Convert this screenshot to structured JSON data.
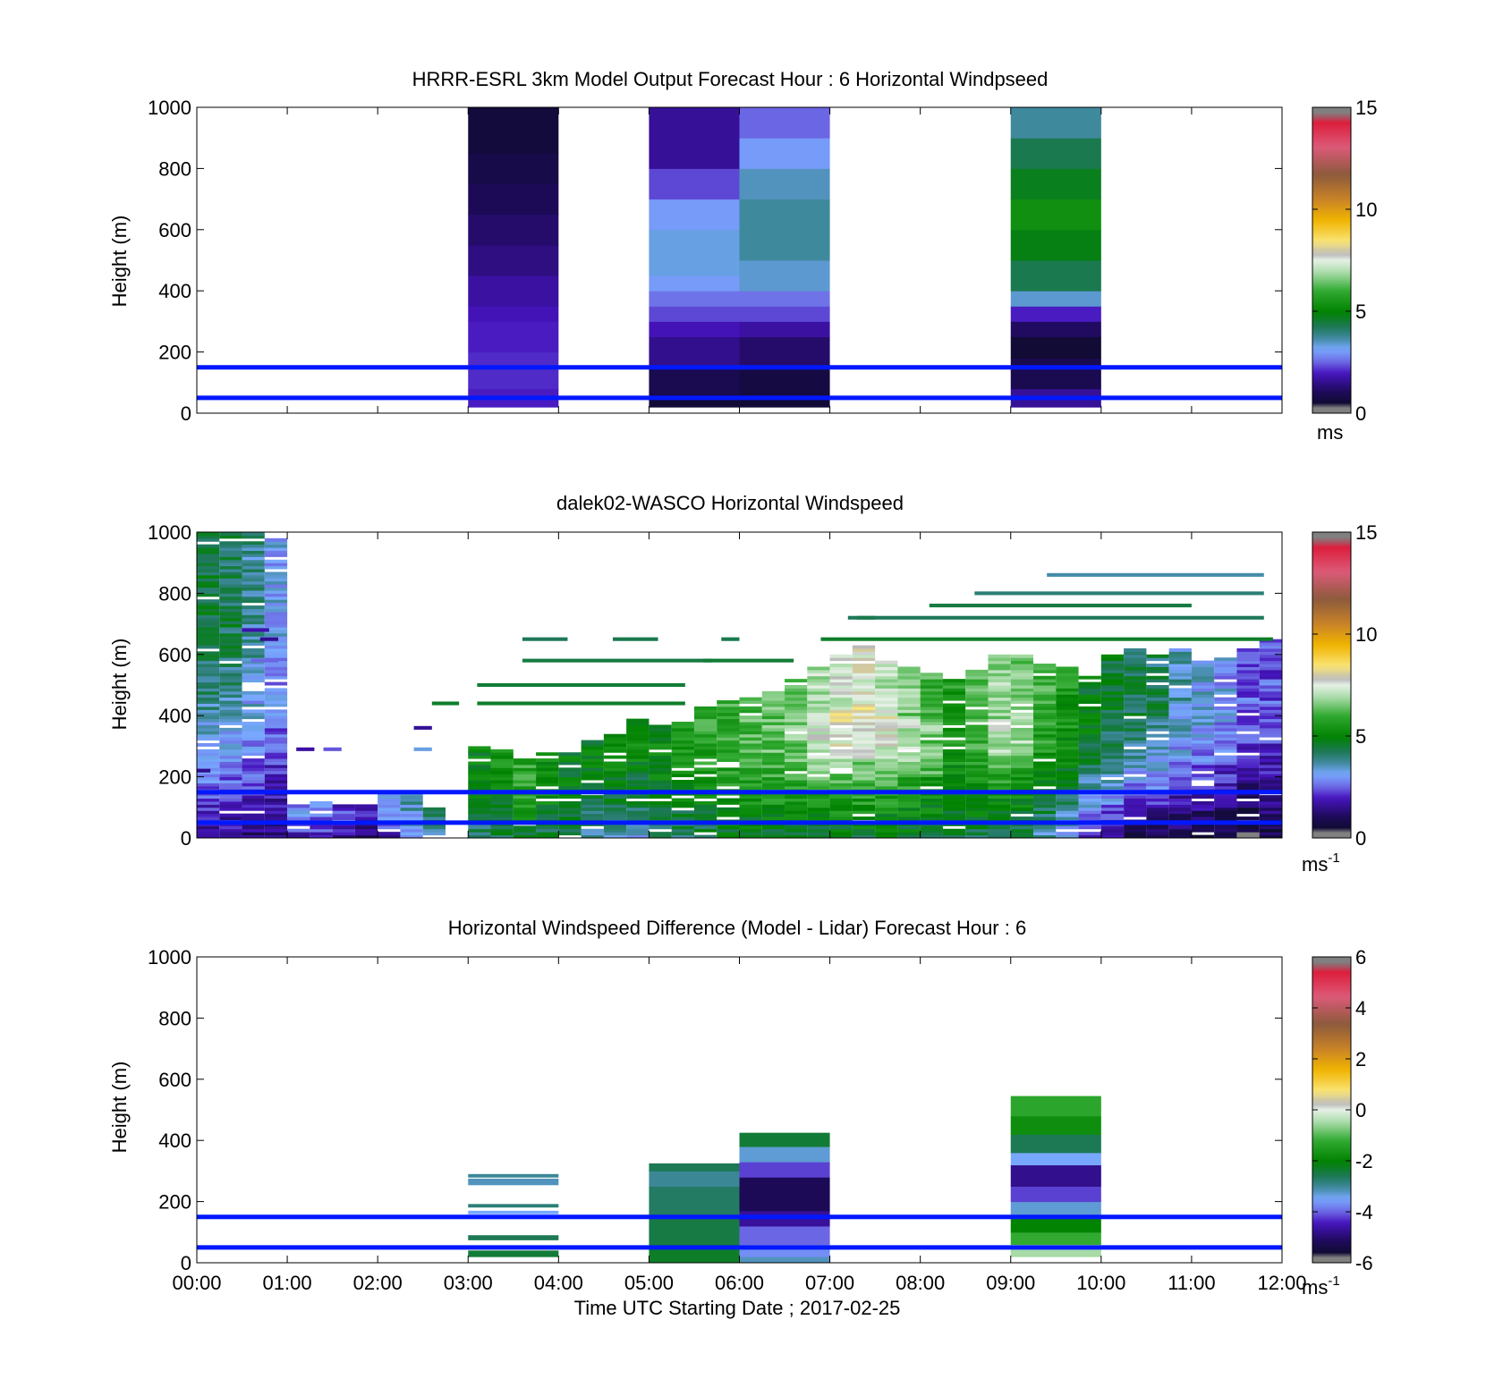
{
  "figure": {
    "xlabel": "Time UTC  Starting Date ; 2017-02-25",
    "x_tick_labels": [
      "00:00",
      "01:00",
      "02:00",
      "03:00",
      "04:00",
      "05:00",
      "06:00",
      "07:00",
      "08:00",
      "09:00",
      "10:00",
      "11:00",
      "12:00"
    ]
  },
  "chart_data": [
    {
      "id": "model",
      "type": "heatmap",
      "title": "HRRR-ESRL 3km Model Output   Forecast Hour : 6 Horizontal Windpseed",
      "ylabel": "Height (m)",
      "xlim": [
        0,
        12
      ],
      "ylim": [
        0,
        1000
      ],
      "y_tick_labels": [
        "0",
        "200",
        "400",
        "600",
        "800",
        "1000"
      ],
      "colorbar": {
        "unit": "ms",
        "unit_sup": "",
        "range": [
          0,
          15
        ],
        "tick_labels": [
          "0",
          "5",
          "10",
          "15"
        ]
      },
      "reference_lines_m": [
        50,
        150
      ],
      "columns": [
        {
          "t0": 3,
          "t1": 4,
          "bins": [
            {
              "h0": 20,
              "h1": 80,
              "v": 2.0
            },
            {
              "h0": 80,
              "h1": 200,
              "v": 2.1
            },
            {
              "h0": 200,
              "h1": 300,
              "v": 2.0
            },
            {
              "h0": 300,
              "h1": 350,
              "v": 1.9
            },
            {
              "h0": 350,
              "h1": 450,
              "v": 1.7
            },
            {
              "h0": 450,
              "h1": 550,
              "v": 1.4
            },
            {
              "h0": 550,
              "h1": 650,
              "v": 1.2
            },
            {
              "h0": 650,
              "h1": 750,
              "v": 1.0
            },
            {
              "h0": 750,
              "h1": 850,
              "v": 0.8
            },
            {
              "h0": 850,
              "h1": 1000,
              "v": 0.6
            }
          ]
        },
        {
          "t0": 5,
          "t1": 6,
          "bins": [
            {
              "h0": 20,
              "h1": 60,
              "v": 0.5
            },
            {
              "h0": 60,
              "h1": 150,
              "v": 0.9
            },
            {
              "h0": 150,
              "h1": 250,
              "v": 1.5
            },
            {
              "h0": 250,
              "h1": 300,
              "v": 1.9
            },
            {
              "h0": 300,
              "h1": 350,
              "v": 2.3
            },
            {
              "h0": 350,
              "h1": 400,
              "v": 2.6
            },
            {
              "h0": 400,
              "h1": 450,
              "v": 3.0
            },
            {
              "h0": 450,
              "h1": 600,
              "v": 3.3
            },
            {
              "h0": 600,
              "h1": 700,
              "v": 3.0
            },
            {
              "h0": 700,
              "h1": 800,
              "v": 2.3
            },
            {
              "h0": 800,
              "h1": 1000,
              "v": 1.6
            }
          ]
        },
        {
          "t0": 6,
          "t1": 7,
          "bins": [
            {
              "h0": 20,
              "h1": 60,
              "v": 0.5
            },
            {
              "h0": 60,
              "h1": 150,
              "v": 0.7
            },
            {
              "h0": 150,
              "h1": 250,
              "v": 1.2
            },
            {
              "h0": 250,
              "h1": 300,
              "v": 1.7
            },
            {
              "h0": 300,
              "h1": 350,
              "v": 2.3
            },
            {
              "h0": 350,
              "h1": 400,
              "v": 2.6
            },
            {
              "h0": 400,
              "h1": 500,
              "v": 3.4
            },
            {
              "h0": 500,
              "h1": 700,
              "v": 3.7
            },
            {
              "h0": 700,
              "h1": 800,
              "v": 3.5
            },
            {
              "h0": 800,
              "h1": 900,
              "v": 3.0
            },
            {
              "h0": 900,
              "h1": 1000,
              "v": 2.5
            }
          ]
        },
        {
          "t0": 9,
          "t1": 10,
          "bins": [
            {
              "h0": 20,
              "h1": 80,
              "v": 1.6
            },
            {
              "h0": 80,
              "h1": 180,
              "v": 0.9
            },
            {
              "h0": 180,
              "h1": 250,
              "v": 0.5
            },
            {
              "h0": 250,
              "h1": 300,
              "v": 1.1
            },
            {
              "h0": 300,
              "h1": 350,
              "v": 2.0
            },
            {
              "h0": 350,
              "h1": 400,
              "v": 3.4
            },
            {
              "h0": 400,
              "h1": 500,
              "v": 4.3
            },
            {
              "h0": 500,
              "h1": 600,
              "v": 4.8
            },
            {
              "h0": 600,
              "h1": 700,
              "v": 5.3
            },
            {
              "h0": 700,
              "h1": 800,
              "v": 4.7
            },
            {
              "h0": 800,
              "h1": 900,
              "v": 4.3
            },
            {
              "h0": 900,
              "h1": 1000,
              "v": 3.7
            }
          ]
        }
      ]
    },
    {
      "id": "lidar",
      "type": "heatmap",
      "title": "dalek02-WASCO  Horizontal Windspeed",
      "ylabel": "Height (m)",
      "xlim": [
        0,
        12
      ],
      "ylim": [
        0,
        1000
      ],
      "y_tick_labels": [
        "0",
        "200",
        "400",
        "600",
        "800",
        "1000"
      ],
      "colorbar": {
        "unit": "ms",
        "unit_sup": "-1",
        "range": [
          0,
          15
        ],
        "tick_labels": [
          "0",
          "5",
          "10",
          "15"
        ]
      },
      "reference_lines_m": [
        50,
        150
      ],
      "profiles": [
        {
          "t": 0.125,
          "top": 1000,
          "lo": 1.5,
          "hi": 4.5,
          "core": 0
        },
        {
          "t": 0.375,
          "top": 1000,
          "lo": 1.5,
          "hi": 4.3,
          "core": 0
        },
        {
          "t": 0.625,
          "top": 1000,
          "lo": 1.3,
          "hi": 3.8,
          "core": 0
        },
        {
          "t": 0.875,
          "top": 980,
          "lo": 1.2,
          "hi": 3.2,
          "core": 0
        },
        {
          "t": 1.125,
          "top": 120,
          "lo": 1.8,
          "hi": 2.8,
          "core": 0
        },
        {
          "t": 1.375,
          "top": 120,
          "lo": 1.8,
          "hi": 2.6,
          "core": 0
        },
        {
          "t": 1.625,
          "top": 110,
          "lo": 1.5,
          "hi": 2.2,
          "core": 0
        },
        {
          "t": 1.875,
          "top": 110,
          "lo": 1.3,
          "hi": 2.0,
          "core": 0
        },
        {
          "t": 2.125,
          "top": 150,
          "lo": 1.8,
          "hi": 2.8,
          "core": 0
        },
        {
          "t": 2.375,
          "top": 150,
          "lo": 2.5,
          "hi": 3.5,
          "core": 0
        },
        {
          "t": 2.625,
          "top": 100,
          "lo": 3.5,
          "hi": 4.2,
          "core": 0
        },
        {
          "t": 3.125,
          "top": 300,
          "lo": 4.0,
          "hi": 5.0,
          "core": 0
        },
        {
          "t": 3.375,
          "top": 290,
          "lo": 4.3,
          "hi": 5.3,
          "core": 0
        },
        {
          "t": 3.625,
          "top": 260,
          "lo": 4.5,
          "hi": 5.8,
          "core": 0
        },
        {
          "t": 3.875,
          "top": 280,
          "lo": 4.3,
          "hi": 5.3,
          "core": 0
        },
        {
          "t": 4.125,
          "top": 300,
          "lo": 4.3,
          "hi": 4.9,
          "core": 0
        },
        {
          "t": 4.375,
          "top": 320,
          "lo": 3.8,
          "hi": 4.8,
          "core": 0
        },
        {
          "t": 4.625,
          "top": 350,
          "lo": 3.6,
          "hi": 5.0,
          "core": 0
        },
        {
          "t": 4.875,
          "top": 390,
          "lo": 3.2,
          "hi": 5.0,
          "core": 0
        },
        {
          "t": 5.125,
          "top": 370,
          "lo": 4.0,
          "hi": 5.0,
          "core": 0
        },
        {
          "t": 5.375,
          "top": 380,
          "lo": 4.0,
          "hi": 5.5,
          "core": 0
        },
        {
          "t": 5.625,
          "top": 430,
          "lo": 4.2,
          "hi": 5.8,
          "core": 0
        },
        {
          "t": 5.875,
          "top": 450,
          "lo": 4.5,
          "hi": 6.0,
          "core": 0
        },
        {
          "t": 6.125,
          "top": 460,
          "lo": 4.5,
          "hi": 6.2,
          "core": 0
        },
        {
          "t": 6.375,
          "top": 480,
          "lo": 4.5,
          "hi": 6.4,
          "core": 0
        },
        {
          "t": 6.625,
          "top": 520,
          "lo": 4.5,
          "hi": 6.6,
          "core": 0
        },
        {
          "t": 6.875,
          "top": 560,
          "lo": 4.5,
          "hi": 7.0,
          "core": 300
        },
        {
          "t": 7.125,
          "top": 600,
          "lo": 4.5,
          "hi": 7.3,
          "core": 330
        },
        {
          "t": 7.375,
          "top": 630,
          "lo": 4.5,
          "hi": 7.5,
          "core": 350
        },
        {
          "t": 7.625,
          "top": 580,
          "lo": 4.5,
          "hi": 7.1,
          "core": 330
        },
        {
          "t": 7.875,
          "top": 560,
          "lo": 4.5,
          "hi": 6.6,
          "core": 300
        },
        {
          "t": 8.125,
          "top": 540,
          "lo": 4.5,
          "hi": 6.0,
          "core": 300
        },
        {
          "t": 8.375,
          "top": 520,
          "lo": 4.3,
          "hi": 5.6,
          "core": 0
        },
        {
          "t": 8.625,
          "top": 560,
          "lo": 4.3,
          "hi": 6.1,
          "core": 0
        },
        {
          "t": 8.875,
          "top": 600,
          "lo": 4.2,
          "hi": 6.8,
          "core": 300
        },
        {
          "t": 9.125,
          "top": 600,
          "lo": 4.0,
          "hi": 6.6,
          "core": 330
        },
        {
          "t": 9.375,
          "top": 580,
          "lo": 3.5,
          "hi": 6.0,
          "core": 0
        },
        {
          "t": 9.625,
          "top": 560,
          "lo": 3.0,
          "hi": 5.5,
          "core": 0
        },
        {
          "t": 9.875,
          "top": 530,
          "lo": 2.0,
          "hi": 4.8,
          "core": 0
        },
        {
          "t": 10.125,
          "top": 600,
          "lo": 1.5,
          "hi": 4.6,
          "core": 0
        },
        {
          "t": 10.375,
          "top": 620,
          "lo": 1.0,
          "hi": 4.4,
          "core": 0
        },
        {
          "t": 10.625,
          "top": 600,
          "lo": 0.8,
          "hi": 4.2,
          "core": 0
        },
        {
          "t": 10.875,
          "top": 620,
          "lo": 0.7,
          "hi": 3.6,
          "core": 0
        },
        {
          "t": 11.125,
          "top": 580,
          "lo": 0.5,
          "hi": 3.3,
          "core": 0
        },
        {
          "t": 11.375,
          "top": 590,
          "lo": 0.4,
          "hi": 3.0,
          "core": 0
        },
        {
          "t": 11.625,
          "top": 620,
          "lo": 0.3,
          "hi": 2.5,
          "core": 0
        },
        {
          "t": 11.875,
          "top": 650,
          "lo": 0.8,
          "hi": 2.4,
          "core": 0
        }
      ],
      "streaks": [
        {
          "t0": 3.1,
          "t1": 5.4,
          "h": 500,
          "v": 4.5
        },
        {
          "t0": 3.1,
          "t1": 5.4,
          "h": 440,
          "v": 4.6
        },
        {
          "t0": 3.6,
          "t1": 5.7,
          "h": 580,
          "v": 4.4
        },
        {
          "t0": 3.6,
          "t1": 4.1,
          "h": 650,
          "v": 4.2
        },
        {
          "t0": 4.6,
          "t1": 5.1,
          "h": 650,
          "v": 4.3
        },
        {
          "t0": 5.6,
          "t1": 6.6,
          "h": 580,
          "v": 4.5
        },
        {
          "t0": 2.6,
          "t1": 2.9,
          "h": 440,
          "v": 4.6
        },
        {
          "t0": 5.8,
          "t1": 6.0,
          "h": 650,
          "v": 4.3
        },
        {
          "t0": 6.9,
          "t1": 11.9,
          "h": 650,
          "v": 4.6
        },
        {
          "t0": 7.2,
          "t1": 11.8,
          "h": 720,
          "v": 4.2
        },
        {
          "t0": 8.1,
          "t1": 11.0,
          "h": 760,
          "v": 4.4
        },
        {
          "t0": 8.6,
          "t1": 11.8,
          "h": 800,
          "v": 4.0
        },
        {
          "t0": 9.4,
          "t1": 11.8,
          "h": 860,
          "v": 3.6
        },
        {
          "t0": 7.3,
          "t1": 7.5,
          "h": 720,
          "v": 4.3
        },
        {
          "t0": 0.5,
          "t1": 0.8,
          "h": 680,
          "v": 1.8
        },
        {
          "t0": 0.6,
          "t1": 0.9,
          "h": 580,
          "v": 2.5
        },
        {
          "t0": 0.7,
          "t1": 0.9,
          "h": 650,
          "v": 1.5
        },
        {
          "t0": 1.1,
          "t1": 1.3,
          "h": 290,
          "v": 1.7
        },
        {
          "t0": 1.4,
          "t1": 1.6,
          "h": 290,
          "v": 2.4
        },
        {
          "t0": 2.4,
          "t1": 2.6,
          "h": 290,
          "v": 3.3
        },
        {
          "t0": 2.4,
          "t1": 2.6,
          "h": 360,
          "v": 1.6
        },
        {
          "t0": 0.0,
          "t1": 0.15,
          "h": 220,
          "v": 1.5
        }
      ]
    },
    {
      "id": "difference",
      "type": "heatmap",
      "title": "Horizontal Windspeed Difference (Model - Lidar) Forecast Hour : 6",
      "ylabel": "Height (m)",
      "xlim": [
        0,
        12
      ],
      "ylim": [
        0,
        1000
      ],
      "y_tick_labels": [
        "0",
        "200",
        "400",
        "600",
        "800",
        "1000"
      ],
      "colorbar": {
        "unit": "ms",
        "unit_sup": "-1",
        "range": [
          -6,
          6
        ],
        "tick_labels": [
          "-6",
          "-4",
          "-2",
          "0",
          "2",
          "4",
          "6"
        ]
      },
      "reference_lines_m": [
        50,
        150
      ],
      "columns": [
        {
          "t0": 3,
          "t1": 4,
          "bins": [
            {
              "h0": 20,
              "h1": 40,
              "v": -2.4
            },
            {
              "h0": 75,
              "h1": 90,
              "v": -2.6
            },
            {
              "h0": 160,
              "h1": 170,
              "v": -3.5
            },
            {
              "h0": 182,
              "h1": 192,
              "v": -2.8
            },
            {
              "h0": 255,
              "h1": 275,
              "v": -3.2
            },
            {
              "h0": 280,
              "h1": 290,
              "v": -3.0
            }
          ]
        },
        {
          "t0": 5,
          "t1": 6,
          "bins": [
            {
              "h0": 0,
              "h1": 60,
              "v": -2.3
            },
            {
              "h0": 60,
              "h1": 150,
              "v": -2.5
            },
            {
              "h0": 150,
              "h1": 250,
              "v": -2.7
            },
            {
              "h0": 250,
              "h1": 300,
              "v": -3.0
            },
            {
              "h0": 300,
              "h1": 325,
              "v": -2.6
            }
          ]
        },
        {
          "t0": 6,
          "t1": 7,
          "bins": [
            {
              "h0": 0,
              "h1": 20,
              "v": -3.2
            },
            {
              "h0": 20,
              "h1": 60,
              "v": -3.7
            },
            {
              "h0": 60,
              "h1": 120,
              "v": -4.0
            },
            {
              "h0": 120,
              "h1": 170,
              "v": -4.7
            },
            {
              "h0": 170,
              "h1": 280,
              "v": -5.2
            },
            {
              "h0": 280,
              "h1": 330,
              "v": -4.2
            },
            {
              "h0": 330,
              "h1": 380,
              "v": -3.3
            },
            {
              "h0": 380,
              "h1": 425,
              "v": -2.4
            }
          ]
        },
        {
          "t0": 9,
          "t1": 10,
          "bins": [
            {
              "h0": 20,
              "h1": 60,
              "v": -0.5
            },
            {
              "h0": 60,
              "h1": 100,
              "v": -1.2
            },
            {
              "h0": 100,
              "h1": 150,
              "v": -2.0
            },
            {
              "h0": 150,
              "h1": 200,
              "v": -3.3
            },
            {
              "h0": 200,
              "h1": 250,
              "v": -4.2
            },
            {
              "h0": 250,
              "h1": 320,
              "v": -4.8
            },
            {
              "h0": 320,
              "h1": 360,
              "v": -3.5
            },
            {
              "h0": 360,
              "h1": 420,
              "v": -2.6
            },
            {
              "h0": 420,
              "h1": 480,
              "v": -1.8
            },
            {
              "h0": 480,
              "h1": 545,
              "v": -1.3
            }
          ]
        }
      ]
    }
  ]
}
